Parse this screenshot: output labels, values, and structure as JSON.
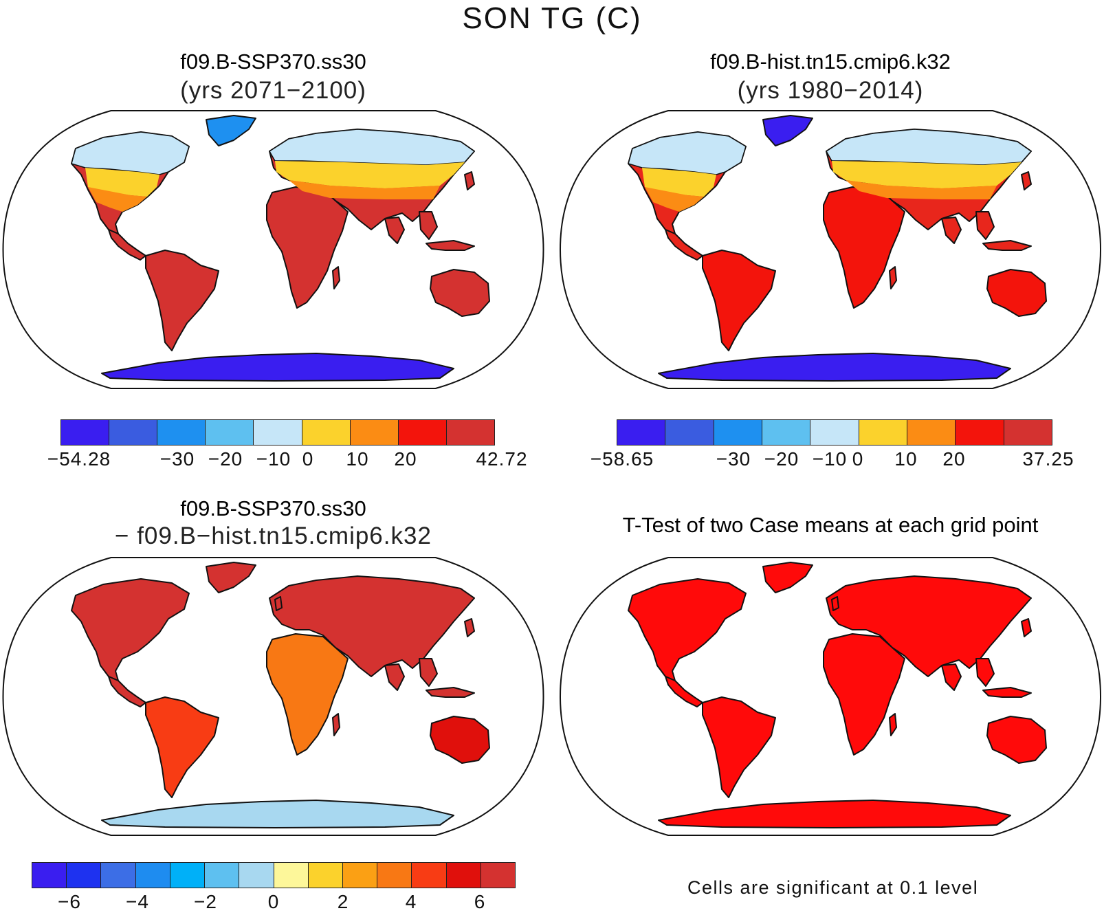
{
  "figure": {
    "title": "SON TG (C)",
    "footnote": "Cells are significant at 0.1 level"
  },
  "panels": [
    {
      "id": "future",
      "title": "f09.B-SSP370.ss30",
      "subtitle": "(yrs 2071−2100)",
      "palette": [
        "#3a1ef0",
        "#3a5ce0",
        "#1e90f0",
        "#5ec0f0",
        "#c6e6f8",
        "#fbd22c",
        "#fb8c14",
        "#f3140c",
        "#d43230"
      ],
      "colorbar_labels": [
        "−54.28",
        "−30",
        "−20",
        "−10",
        "0",
        "10",
        "20",
        "42.72"
      ],
      "land_fill": "#d43230",
      "ocean_fill": "#ffffff"
    },
    {
      "id": "historical",
      "title": "f09.B-hist.tn15.cmip6.k32",
      "subtitle": "(yrs 1980−2014)",
      "palette": [
        "#3a1ef0",
        "#3a5ce0",
        "#1e90f0",
        "#5ec0f0",
        "#c6e6f8",
        "#fbd22c",
        "#fb8c14",
        "#f3140c",
        "#d43230"
      ],
      "colorbar_labels": [
        "−58.65",
        "−30",
        "−20",
        "−10",
        "0",
        "10",
        "20",
        "37.25"
      ],
      "land_fill": "#e8261c",
      "ocean_fill": "#ffffff"
    },
    {
      "id": "difference",
      "title": "f09.B-SSP370.ss30",
      "subtitle": "− f09.B−hist.tn15.cmip6.k32",
      "palette": [
        "#3a1ef0",
        "#1e32f0",
        "#3c6ee6",
        "#1e8cf0",
        "#00b0f8",
        "#5ec0f0",
        "#a8d8f0",
        "#fdf79a",
        "#fbd22c",
        "#fba014",
        "#f87814",
        "#f83c14",
        "#e0100c",
        "#d43230"
      ],
      "colorbar_labels": [
        "−6",
        "−4",
        "−2",
        "0",
        "2",
        "4",
        "6"
      ],
      "land_fill": "#d43230",
      "ocean_fill": "#ffffff"
    },
    {
      "id": "ttest",
      "title": "T-Test of two Case means at each grid point",
      "land_fill": "#ff0a0a",
      "ocean_fill": "#ffffff"
    }
  ]
}
